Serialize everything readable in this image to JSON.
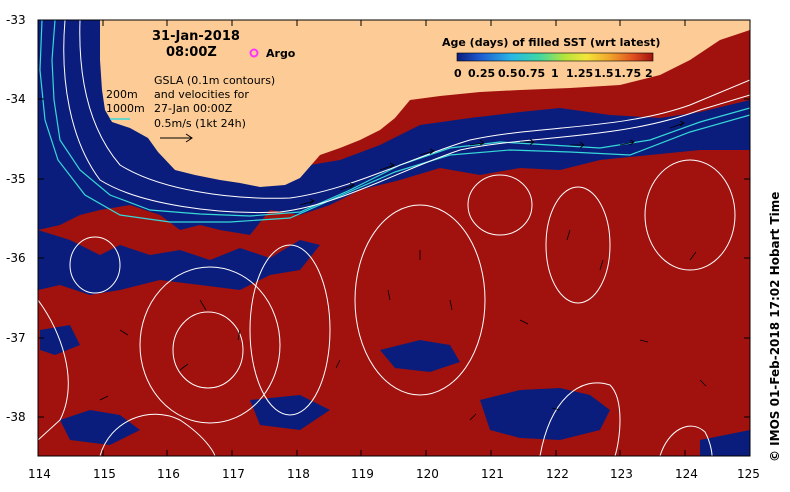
{
  "overlay": {
    "date": "31-Jan-2018",
    "time": "08:00Z",
    "argo_label": "Argo",
    "depth_200": "200m",
    "depth_1000": "1000m",
    "gsla_line1": "GSLA (0.1m contours)",
    "gsla_line2": "and velocities for",
    "gsla_line3": "27-Jan 00:00Z",
    "velocity_scale": "0.5m/s (1kt 24h)"
  },
  "colorbar": {
    "title": "Age (days) of filled SST (wrt latest)",
    "ticks": [
      "0",
      "0.25",
      "0.5",
      "0.75",
      "1",
      "1.25",
      "1.5",
      "1.75",
      "2"
    ],
    "colors": [
      "#0b1d7c",
      "#1f5bd0",
      "#29b8e6",
      "#3fd7a3",
      "#b6e43b",
      "#f3e53a",
      "#f0a52c",
      "#e0501f",
      "#a1120f"
    ]
  },
  "axes": {
    "x_ticks": [
      "114",
      "115",
      "116",
      "117",
      "118",
      "119",
      "120",
      "121",
      "122",
      "123",
      "124",
      "125"
    ],
    "y_ticks": [
      "-33",
      "-34",
      "-35",
      "-36",
      "-37",
      "-38"
    ]
  },
  "credit": "© IMOS 01-Feb-2018 17:02 Hobart Time",
  "colors": {
    "land": "#fdcc96",
    "sea_old": "#a1120f",
    "sea_new": "#0b1d7c",
    "contour": "#ffffff",
    "isobath": "#36d8d8",
    "argo": "#ff33ff"
  }
}
